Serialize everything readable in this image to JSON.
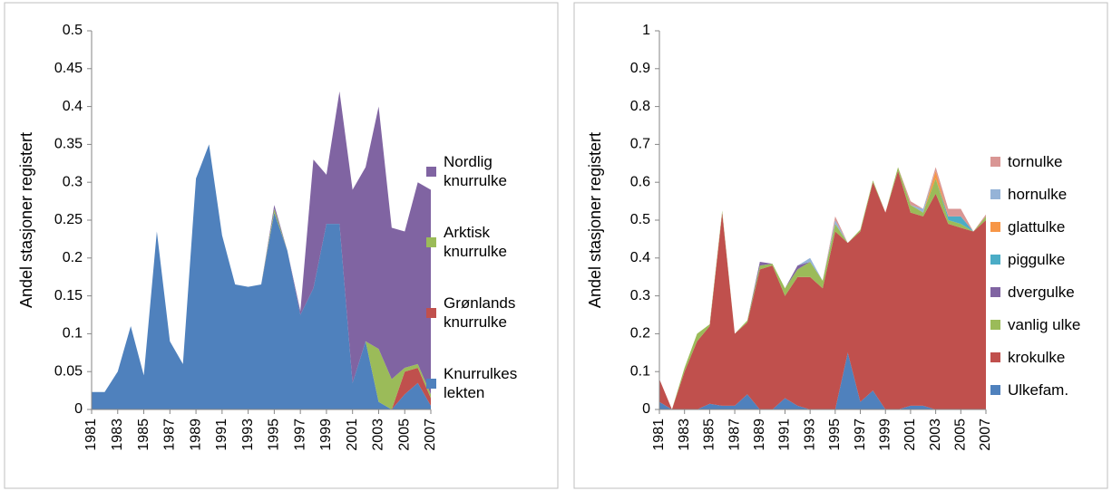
{
  "chart_data": [
    {
      "type": "area",
      "stacked": true,
      "y_label": "Andel stasjoner registert",
      "x": [
        1981,
        1982,
        1983,
        1984,
        1985,
        1986,
        1987,
        1988,
        1989,
        1990,
        1991,
        1992,
        1993,
        1994,
        1995,
        1996,
        1997,
        1998,
        1999,
        2000,
        2001,
        2002,
        2003,
        2004,
        2005,
        2006,
        2007
      ],
      "xlim": [
        1981,
        2007
      ],
      "xticks": [
        1981,
        1983,
        1985,
        1987,
        1989,
        1991,
        1993,
        1995,
        1997,
        1999,
        2001,
        2003,
        2005,
        2007
      ],
      "ylim": [
        0,
        0.5
      ],
      "yticks": [
        0,
        0.05,
        0.1,
        0.15,
        0.2,
        0.25,
        0.3,
        0.35,
        0.4,
        0.45,
        0.5
      ],
      "legend": "right",
      "series": [
        {
          "name": "Knurrulkes lekten",
          "color": "#4f81bd",
          "values": [
            0.023,
            0.023,
            0.05,
            0.11,
            0.045,
            0.235,
            0.09,
            0.06,
            0.305,
            0.35,
            0.23,
            0.165,
            0.162,
            0.165,
            0.26,
            0.21,
            0.125,
            0.16,
            0.245,
            0.245,
            0.035,
            0.09,
            0.01,
            0,
            0.02,
            0.035,
            0.005
          ]
        },
        {
          "name": "Grønlands knurrulke",
          "color": "#c0504d",
          "values": [
            0,
            0,
            0,
            0,
            0,
            0,
            0,
            0,
            0,
            0,
            0,
            0,
            0,
            0,
            0,
            0,
            0,
            0,
            0,
            0,
            0,
            0,
            0,
            0,
            0.03,
            0.02,
            0.01
          ]
        },
        {
          "name": "Arktisk knurrulke",
          "color": "#9bbb59",
          "values": [
            0,
            0,
            0,
            0,
            0,
            0,
            0,
            0,
            0,
            0,
            0,
            0,
            0,
            0,
            0.005,
            0,
            0,
            0,
            0,
            0,
            0,
            0,
            0.07,
            0.04,
            0.005,
            0.005,
            0.005
          ]
        },
        {
          "name": "Nordlig knurrulke",
          "color": "#8064a2",
          "values": [
            0,
            0,
            0,
            0,
            0,
            0,
            0,
            0,
            0,
            0,
            0,
            0,
            0,
            0,
            0.005,
            0,
            0.005,
            0.17,
            0.065,
            0.175,
            0.255,
            0.23,
            0.32,
            0.2,
            0.18,
            0.24,
            0.27
          ]
        }
      ]
    },
    {
      "type": "area",
      "stacked": true,
      "y_label": "Andel stasjoner registert",
      "x": [
        1981,
        1982,
        1983,
        1984,
        1985,
        1986,
        1987,
        1988,
        1989,
        1990,
        1991,
        1992,
        1993,
        1994,
        1995,
        1996,
        1997,
        1998,
        1999,
        2000,
        2001,
        2002,
        2003,
        2004,
        2005,
        2006,
        2007
      ],
      "xlim": [
        1981,
        2007
      ],
      "xticks": [
        1981,
        1983,
        1985,
        1987,
        1989,
        1991,
        1993,
        1995,
        1997,
        1999,
        2001,
        2003,
        2005,
        2007
      ],
      "ylim": [
        0,
        1
      ],
      "yticks": [
        0,
        0.1,
        0.2,
        0.3,
        0.4,
        0.5,
        0.6,
        0.7,
        0.8,
        0.9,
        1
      ],
      "legend": "right",
      "series": [
        {
          "name": "Ulkefam.",
          "color": "#4f81bd",
          "values": [
            0.02,
            0,
            0,
            0,
            0.015,
            0.01,
            0.01,
            0.04,
            0,
            0,
            0.03,
            0.01,
            0,
            0,
            0,
            0.15,
            0.02,
            0.05,
            0,
            0,
            0.01,
            0.01,
            0,
            0,
            0,
            0,
            0
          ]
        },
        {
          "name": "krokulke",
          "color": "#c0504d",
          "values": [
            0.06,
            0,
            0.1,
            0.18,
            0.205,
            0.51,
            0.19,
            0.19,
            0.37,
            0.38,
            0.27,
            0.34,
            0.35,
            0.32,
            0.47,
            0.29,
            0.45,
            0.55,
            0.52,
            0.63,
            0.51,
            0.5,
            0.57,
            0.49,
            0.48,
            0.47,
            0.5
          ]
        },
        {
          "name": "vanlig ulke",
          "color": "#9bbb59",
          "values": [
            0,
            0,
            0.01,
            0.02,
            0.005,
            0.005,
            0,
            0.005,
            0.01,
            0.005,
            0.02,
            0.02,
            0.04,
            0.02,
            0.02,
            0,
            0.005,
            0.005,
            0,
            0.01,
            0.02,
            0.01,
            0.04,
            0.01,
            0.01,
            0,
            0.01
          ]
        },
        {
          "name": "dvergulke",
          "color": "#8064a2",
          "values": [
            0,
            0,
            0,
            0,
            0,
            0,
            0,
            0,
            0.01,
            0,
            0,
            0.01,
            0,
            0,
            0,
            0,
            0,
            0,
            0,
            0,
            0,
            0,
            0,
            0,
            0,
            0,
            0
          ]
        },
        {
          "name": "piggulke",
          "color": "#4bacc6",
          "values": [
            0,
            0,
            0,
            0,
            0,
            0,
            0,
            0,
            0,
            0,
            0,
            0,
            0,
            0,
            0,
            0,
            0,
            0,
            0,
            0,
            0,
            0,
            0,
            0.01,
            0.02,
            0,
            0
          ]
        },
        {
          "name": "glattulke",
          "color": "#f79646",
          "values": [
            0,
            0,
            0,
            0,
            0,
            0,
            0,
            0,
            0,
            0,
            0,
            0,
            0,
            0,
            0,
            0,
            0,
            0,
            0,
            0,
            0,
            0,
            0.02,
            0,
            0,
            0,
            0
          ]
        },
        {
          "name": "hornulke",
          "color": "#95b3d7",
          "values": [
            0,
            0,
            0,
            0,
            0,
            0,
            0,
            0,
            0,
            0,
            0,
            0,
            0.01,
            0,
            0.01,
            0,
            0,
            0,
            0,
            0,
            0,
            0.01,
            0,
            0,
            0,
            0,
            0
          ]
        },
        {
          "name": "tornulke",
          "color": "#d99694",
          "values": [
            0,
            0,
            0,
            0,
            0,
            0,
            0,
            0,
            0,
            0,
            0,
            0,
            0,
            0,
            0.01,
            0,
            0,
            0,
            0,
            0,
            0.01,
            0,
            0.01,
            0.02,
            0.02,
            0,
            0.005
          ]
        }
      ]
    }
  ]
}
